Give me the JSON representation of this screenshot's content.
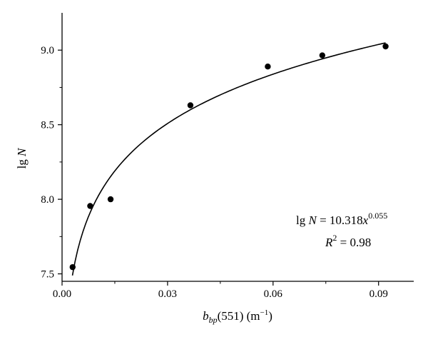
{
  "chart_data": {
    "type": "scatter",
    "points": [
      {
        "x": 0.003,
        "y": 7.545
      },
      {
        "x": 0.008,
        "y": 7.955
      },
      {
        "x": 0.0138,
        "y": 8.0
      },
      {
        "x": 0.0365,
        "y": 8.63
      },
      {
        "x": 0.0585,
        "y": 8.89
      },
      {
        "x": 0.074,
        "y": 8.965
      },
      {
        "x": 0.092,
        "y": 9.025
      }
    ],
    "fit": {
      "type": "power",
      "a": 10.318,
      "b": 0.055,
      "r2": 0.98
    },
    "xlim": [
      0,
      0.1
    ],
    "ylim": [
      7.45,
      9.25
    ],
    "x_ticks": [
      0.0,
      0.03,
      0.06,
      0.09
    ],
    "x_tick_labels": [
      "0.00",
      "0.03",
      "0.06",
      "0.09"
    ],
    "y_ticks": [
      7.5,
      8.0,
      8.5,
      9.0
    ],
    "y_tick_labels": [
      "7.5",
      "8.0",
      "8.5",
      "9.0"
    ],
    "xlabel": {
      "main": "b",
      "sub": "bp",
      "rest": "(551) (m",
      "sup": "−1",
      "close": ")"
    },
    "ylabel": {
      "prefix": "lg ",
      "var": "N"
    },
    "annotation": {
      "line1_prefix": "lg ",
      "line1_var": "N",
      "line1_eq": " = 10.318",
      "line1_x": "x",
      "line1_exp": "0.055",
      "line2_var": "R",
      "line2_sup": "2",
      "line2_val": " = 0.98"
    },
    "grid": false,
    "legend": "none",
    "marker_color": "#000000",
    "line_color": "#000000"
  }
}
